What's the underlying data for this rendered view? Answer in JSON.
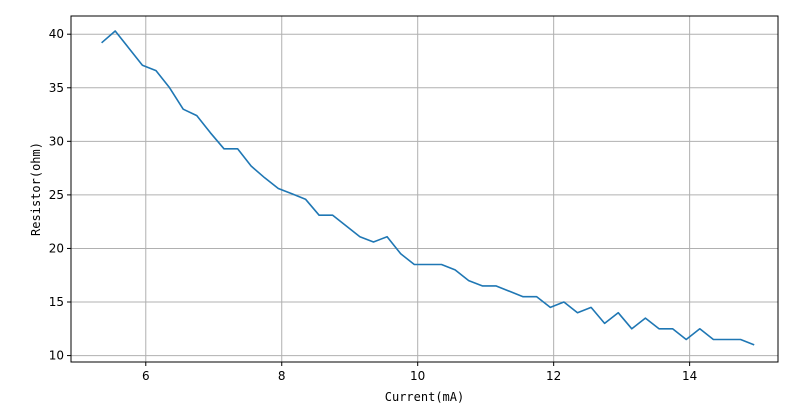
{
  "chart_data": {
    "type": "line",
    "title": "",
    "xlabel": "Current(mA)",
    "ylabel": "Resistor(ohm)",
    "xlim": [
      4.9,
      15.3
    ],
    "ylim": [
      9.4,
      41.7
    ],
    "xticks": [
      6,
      8,
      10,
      12,
      14
    ],
    "yticks": [
      10,
      15,
      20,
      25,
      30,
      35,
      40
    ],
    "grid": true,
    "legend": "none",
    "series": [
      {
        "color": "#1f77b4",
        "x": [
          5.35,
          5.55,
          5.75,
          5.95,
          6.15,
          6.35,
          6.55,
          6.75,
          6.95,
          7.15,
          7.35,
          7.55,
          7.75,
          7.95,
          8.15,
          8.35,
          8.55,
          8.75,
          8.95,
          9.15,
          9.35,
          9.55,
          9.75,
          9.95,
          10.15,
          10.35,
          10.55,
          10.75,
          10.95,
          11.15,
          11.35,
          11.55,
          11.75,
          11.95,
          12.15,
          12.35,
          12.55,
          12.75,
          12.95,
          13.15,
          13.35,
          13.55,
          13.75,
          13.95,
          14.15,
          14.35,
          14.55,
          14.75,
          14.95
        ],
        "y": [
          39.2,
          40.3,
          38.7,
          37.1,
          36.6,
          35.0,
          33.0,
          32.4,
          30.8,
          29.3,
          29.3,
          27.7,
          26.6,
          25.6,
          25.1,
          24.6,
          23.1,
          23.1,
          22.1,
          21.1,
          20.6,
          21.1,
          19.5,
          18.5,
          18.5,
          18.5,
          18.0,
          17.0,
          16.5,
          16.5,
          16.0,
          15.5,
          15.5,
          14.5,
          15.0,
          14.0,
          14.5,
          13.0,
          14.0,
          12.5,
          13.5,
          12.5,
          12.5,
          11.5,
          12.5,
          11.5,
          11.5,
          11.5,
          11.0
        ]
      }
    ]
  }
}
